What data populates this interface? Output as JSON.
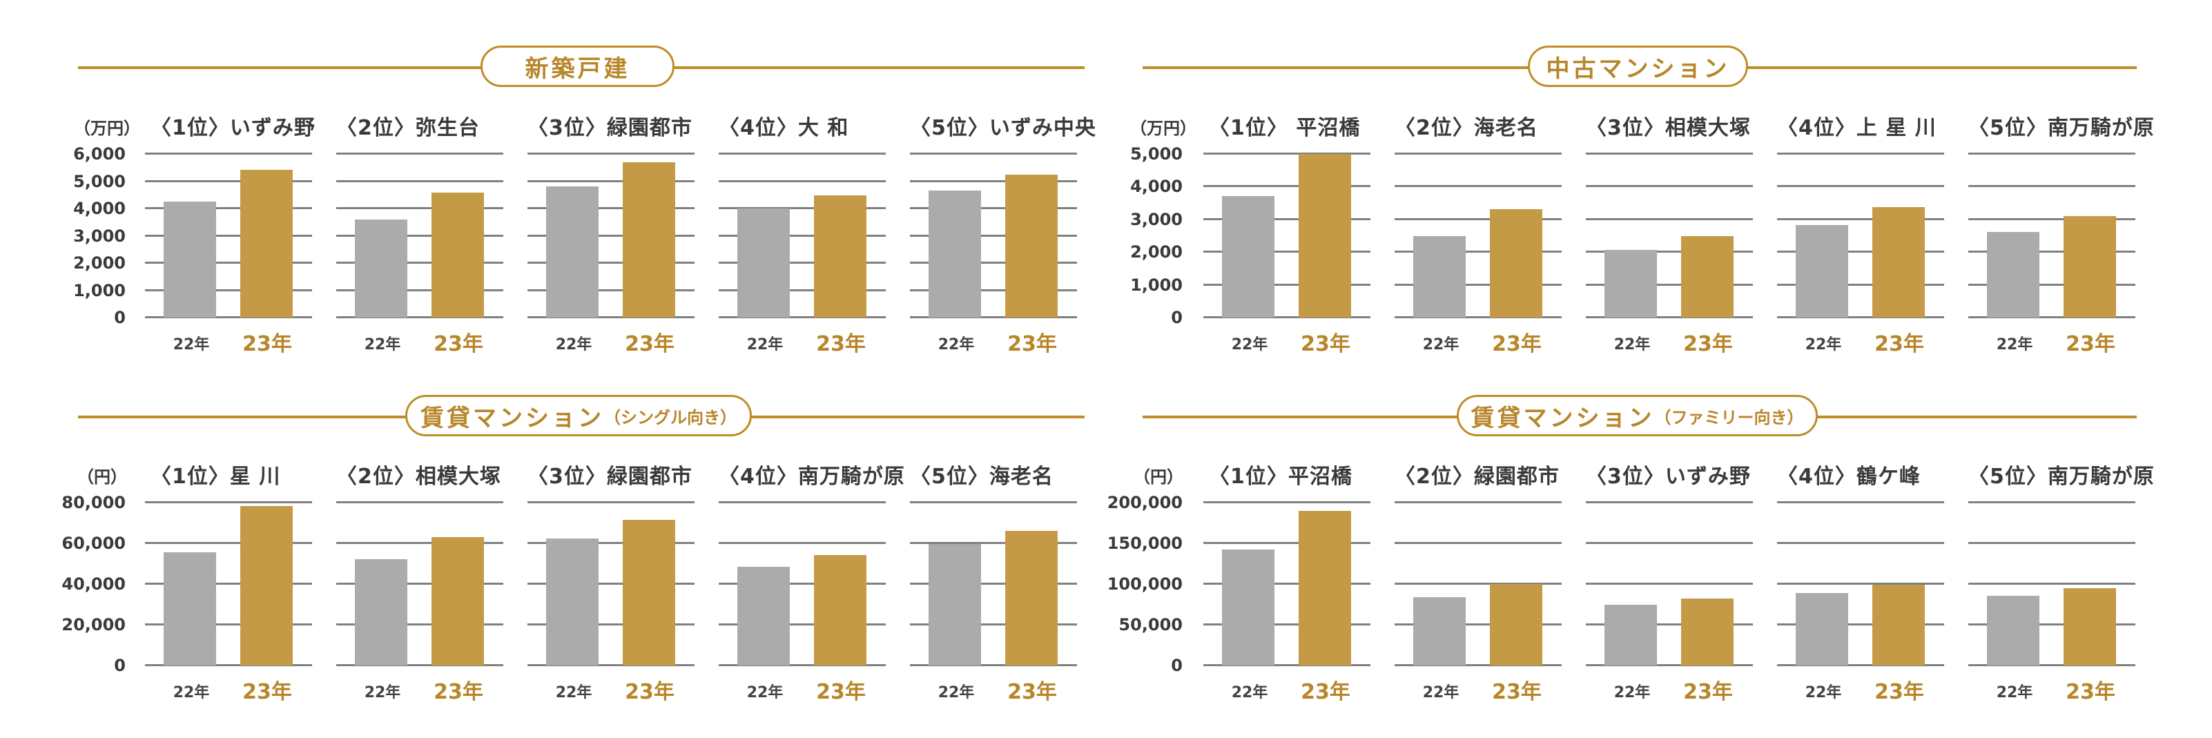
{
  "colors": {
    "accent": "#bf8c28",
    "bar22": "#aaabaa",
    "bar23": "#c59a47",
    "grid": "#808080",
    "text": "#3a3a3a"
  },
  "legend": {
    "y22": "22年",
    "y23": "23年"
  },
  "chart_data": [
    {
      "type": "bar",
      "title": "新築戸建",
      "unit": "（万円）",
      "ylim": [
        0,
        6000
      ],
      "yticks": [
        "6,000",
        "5,000",
        "4,000",
        "3,000",
        "2,000",
        "1,000",
        "0"
      ],
      "categories": [
        "〈1位〉いずみ野",
        "〈2位〉弥生台",
        "〈3位〉緑園都市",
        "〈4位〉大 和",
        "〈5位〉いずみ中央"
      ],
      "series": [
        {
          "name": "22年",
          "values": [
            4250,
            3600,
            4810,
            3990,
            4670
          ]
        },
        {
          "name": "23年",
          "values": [
            5430,
            4580,
            5690,
            4490,
            5240
          ]
        }
      ]
    },
    {
      "type": "bar",
      "title": "中古マンション",
      "unit": "（万円）",
      "ylim": [
        0,
        5000
      ],
      "yticks": [
        "5,000",
        "4,000",
        "3,000",
        "2,000",
        "1,000",
        "0"
      ],
      "categories": [
        "〈1位〉 平沼橋",
        "〈2位〉海老名",
        "〈3位〉相模大塚",
        "〈4位〉上 星 川",
        "〈5位〉南万騎が原"
      ],
      "series": [
        {
          "name": "22年",
          "values": [
            3710,
            2490,
            2070,
            2830,
            2610
          ]
        },
        {
          "name": "23年",
          "values": [
            5000,
            3310,
            2490,
            3380,
            3100
          ]
        }
      ]
    },
    {
      "type": "bar",
      "title": "賃貸マンション",
      "subtitle": "（シングル向き）",
      "unit": "（円）",
      "ylim": [
        0,
        80000
      ],
      "yticks": [
        "80,000",
        "60,000",
        "40,000",
        "20,000",
        "0"
      ],
      "categories": [
        "〈1位〉星 川",
        "〈2位〉相模大塚",
        "〈3位〉緑園都市",
        "〈4位〉南万騎が原",
        "〈5位〉海老名"
      ],
      "series": [
        {
          "name": "22年",
          "values": [
            55500,
            52300,
            62300,
            48600,
            59600
          ]
        },
        {
          "name": "23年",
          "values": [
            78400,
            63000,
            71700,
            54200,
            66000
          ]
        }
      ]
    },
    {
      "type": "bar",
      "title": "賃貸マンション",
      "subtitle": "（ファミリー向き）",
      "unit": "（円）",
      "ylim": [
        0,
        200000
      ],
      "yticks": [
        "200,000",
        "150,000",
        "100,000",
        "50,000",
        "0"
      ],
      "categories": [
        "〈1位〉平沼橋",
        "〈2位〉緑園都市",
        "〈3位〉いずみ野",
        "〈4位〉鶴ケ峰",
        "〈5位〉南万騎が原"
      ],
      "series": [
        {
          "name": "22年",
          "values": [
            142000,
            83500,
            74500,
            88600,
            85500
          ]
        },
        {
          "name": "23年",
          "values": [
            189600,
            99600,
            82400,
            99300,
            94800
          ]
        }
      ]
    }
  ]
}
